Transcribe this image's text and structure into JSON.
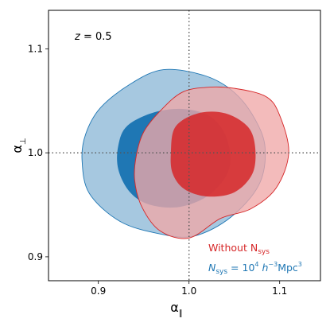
{
  "chart_data": {
    "type": "contour",
    "xlim": [
      0.845,
      1.145
    ],
    "ylim": [
      0.877,
      1.137
    ],
    "xticks": [
      0.9,
      1.0,
      1.1
    ],
    "yticks": [
      0.9,
      1.0,
      1.1
    ],
    "x_tick_labels": [
      "0.9",
      "1.0",
      "1.1"
    ],
    "y_tick_labels": [
      "0.9",
      "1.0",
      "1.1"
    ],
    "xlabel_base": "α",
    "xlabel_sub": "∥",
    "ylabel_base": "α",
    "ylabel_sub": "⊥",
    "reference_lines": {
      "x": 1.0,
      "y": 1.0
    },
    "annotation": {
      "var": "z",
      "eq": " = 0.5"
    },
    "legend_placement": "bottom-right",
    "series": [
      {
        "name_text": "N",
        "name_sub": "sys",
        "name_eq": " = 10",
        "name_sup1": "4",
        "name_unit1": " h",
        "name_sup2": "−3",
        "name_unit2": "Mpc",
        "name_sup3": "3",
        "color": "#1f77b4",
        "outer_fill": "#a6c8e0",
        "inner_fill": "#1f77b4",
        "contours": {
          "outer": [
            [
              0.902,
              1.043
            ],
            [
              0.935,
              1.066
            ],
            [
              0.972,
              1.08
            ],
            [
              1.018,
              1.074
            ],
            [
              1.05,
              1.058
            ],
            [
              1.073,
              1.032
            ],
            [
              1.084,
              1.004
            ],
            [
              1.077,
              0.969
            ],
            [
              1.046,
              0.938
            ],
            [
              1.006,
              0.92
            ],
            [
              0.968,
              0.922
            ],
            [
              0.924,
              0.934
            ],
            [
              0.89,
              0.961
            ],
            [
              0.882,
              0.993
            ],
            [
              0.886,
              1.018
            ]
          ],
          "inner": [
            [
              0.932,
              1.026
            ],
            [
              0.962,
              1.039
            ],
            [
              0.996,
              1.042
            ],
            [
              1.025,
              1.034
            ],
            [
              1.042,
              1.013
            ],
            [
              1.044,
              0.984
            ],
            [
              1.023,
              0.96
            ],
            [
              0.99,
              0.948
            ],
            [
              0.957,
              0.95
            ],
            [
              0.935,
              0.962
            ],
            [
              0.922,
              0.984
            ],
            [
              0.922,
              1.007
            ]
          ]
        }
      },
      {
        "name_text": "Without N",
        "name_sub": "sys",
        "color": "#d62728",
        "outer_fill": "#f0a8a8",
        "inner_fill": "#d62728",
        "contours": {
          "outer": [
            [
              0.95,
              1.02
            ],
            [
              0.968,
              1.04
            ],
            [
              0.992,
              1.058
            ],
            [
              1.02,
              1.063
            ],
            [
              1.05,
              1.062
            ],
            [
              1.085,
              1.054
            ],
            [
              1.1,
              1.036
            ],
            [
              1.11,
              1.0
            ],
            [
              1.096,
              0.966
            ],
            [
              1.068,
              0.946
            ],
            [
              1.035,
              0.937
            ],
            [
              1.0,
              0.918
            ],
            [
              0.968,
              0.925
            ],
            [
              0.948,
              0.948
            ],
            [
              0.94,
              0.974
            ],
            [
              0.942,
              0.998
            ]
          ],
          "inner": [
            [
              0.985,
              1.025
            ],
            [
              1.01,
              1.038
            ],
            [
              1.04,
              1.038
            ],
            [
              1.065,
              1.025
            ],
            [
              1.073,
              1.005
            ],
            [
              1.07,
              0.98
            ],
            [
              1.05,
              0.962
            ],
            [
              1.02,
              0.958
            ],
            [
              0.995,
              0.965
            ],
            [
              0.982,
              0.98
            ],
            [
              0.98,
              1.0
            ]
          ]
        }
      }
    ]
  }
}
